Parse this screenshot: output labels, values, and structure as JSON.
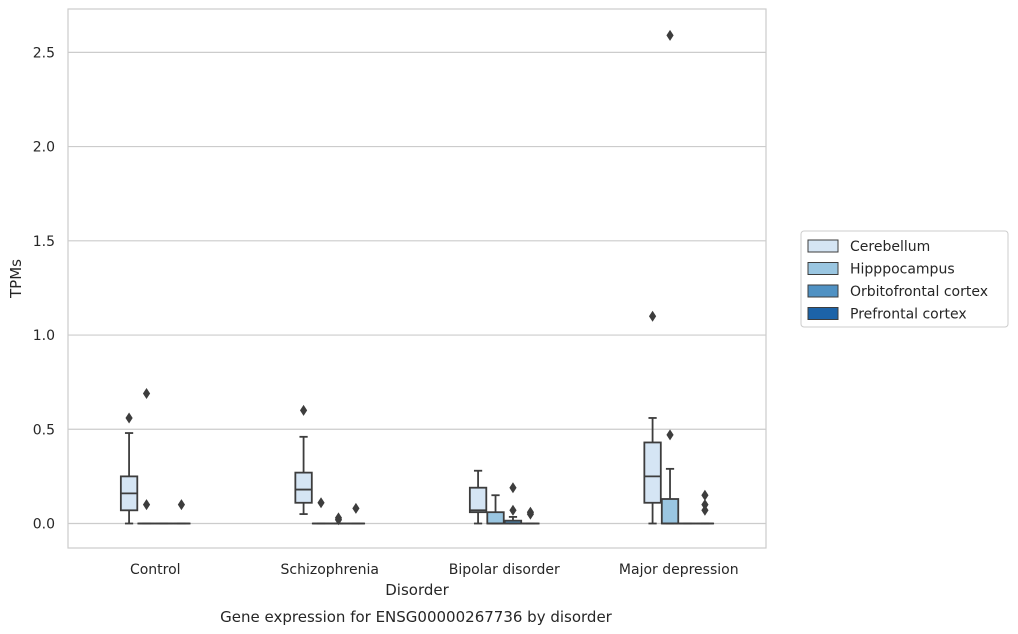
{
  "chart_data": {
    "type": "box",
    "caption": "Gene expression for ENSG00000267736 by disorder",
    "xlabel": "Disorder",
    "ylabel": "TPMs",
    "ylim": [
      -0.13,
      2.73
    ],
    "yticks": [
      0.0,
      0.5,
      1.0,
      1.5,
      2.0,
      2.5
    ],
    "ytick_labels": [
      "0.0",
      "0.5",
      "1.0",
      "1.5",
      "2.0",
      "2.5"
    ],
    "grid": "horizontal",
    "legend_position": "right",
    "categories": [
      "Control",
      "Schizophrenia",
      "Bipolar disorder",
      "Major depression"
    ],
    "series": [
      {
        "name": "Cerebellum",
        "color": "#d5e5f4",
        "boxes": [
          {
            "whislo": 0.0,
            "q1": 0.07,
            "med": 0.16,
            "q3": 0.25,
            "whishi": 0.48,
            "fliers": [
              0.56
            ]
          },
          {
            "whislo": 0.05,
            "q1": 0.11,
            "med": 0.18,
            "q3": 0.27,
            "whishi": 0.46,
            "fliers": [
              0.6
            ]
          },
          {
            "whislo": 0.0,
            "q1": 0.06,
            "med": 0.07,
            "q3": 0.19,
            "whishi": 0.28,
            "fliers": []
          },
          {
            "whislo": 0.0,
            "q1": 0.11,
            "med": 0.25,
            "q3": 0.43,
            "whishi": 0.56,
            "fliers": [
              1.1
            ]
          }
        ]
      },
      {
        "name": "Hipppocampus",
        "color": "#9ac6e1",
        "boxes": [
          {
            "whislo": 0.0,
            "q1": 0.0,
            "med": 0.0,
            "q3": 0.0,
            "whishi": 0.0,
            "fliers": [
              0.1,
              0.69
            ]
          },
          {
            "whislo": 0.0,
            "q1": 0.0,
            "med": 0.0,
            "q3": 0.0,
            "whishi": 0.0,
            "fliers": [
              0.11
            ]
          },
          {
            "whislo": 0.0,
            "q1": 0.0,
            "med": 0.0,
            "q3": 0.06,
            "whishi": 0.15,
            "fliers": []
          },
          {
            "whislo": 0.0,
            "q1": 0.0,
            "med": 0.0,
            "q3": 0.13,
            "whishi": 0.29,
            "fliers": [
              0.47,
              2.59
            ]
          }
        ]
      },
      {
        "name": "Orbitofrontal cortex",
        "color": "#4f91c3",
        "boxes": [
          {
            "whislo": 0.0,
            "q1": 0.0,
            "med": 0.0,
            "q3": 0.0,
            "whishi": 0.0,
            "fliers": []
          },
          {
            "whislo": 0.0,
            "q1": 0.0,
            "med": 0.0,
            "q3": 0.0,
            "whishi": 0.0,
            "fliers": [
              0.02,
              0.03
            ]
          },
          {
            "whislo": 0.0,
            "q1": 0.0,
            "med": 0.0,
            "q3": 0.015,
            "whishi": 0.035,
            "fliers": [
              0.07,
              0.19
            ]
          },
          {
            "whislo": 0.0,
            "q1": 0.0,
            "med": 0.0,
            "q3": 0.0,
            "whishi": 0.0,
            "fliers": []
          }
        ]
      },
      {
        "name": "Prefrontal cortex",
        "color": "#1c63a8",
        "boxes": [
          {
            "whislo": 0.0,
            "q1": 0.0,
            "med": 0.0,
            "q3": 0.0,
            "whishi": 0.0,
            "fliers": [
              0.1
            ]
          },
          {
            "whislo": 0.0,
            "q1": 0.0,
            "med": 0.0,
            "q3": 0.0,
            "whishi": 0.0,
            "fliers": [
              0.08
            ]
          },
          {
            "whislo": 0.0,
            "q1": 0.0,
            "med": 0.0,
            "q3": 0.0,
            "whishi": 0.0,
            "fliers": [
              0.05,
              0.06
            ]
          },
          {
            "whislo": 0.0,
            "q1": 0.0,
            "med": 0.0,
            "q3": 0.0,
            "whishi": 0.0,
            "fliers": [
              0.07,
              0.1,
              0.15
            ]
          }
        ]
      }
    ]
  }
}
